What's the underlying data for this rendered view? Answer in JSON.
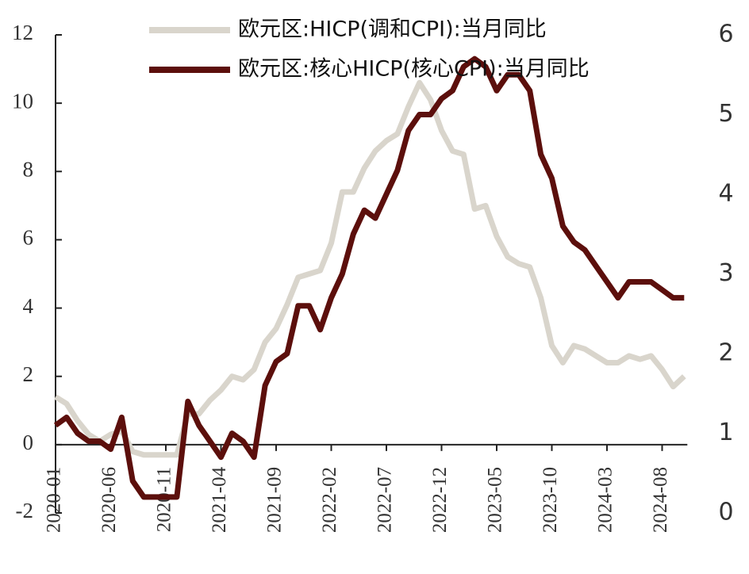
{
  "chart_data": {
    "type": "line",
    "categories": [
      "2020-01",
      null,
      null,
      null,
      null,
      "2020-06",
      null,
      null,
      null,
      null,
      "2020-11",
      null,
      null,
      null,
      null,
      "2021-04",
      null,
      null,
      null,
      null,
      "2021-09",
      null,
      null,
      null,
      null,
      "2022-02",
      null,
      null,
      null,
      null,
      "2022-07",
      null,
      null,
      null,
      null,
      "2022-12",
      null,
      null,
      null,
      null,
      "2023-05",
      null,
      null,
      null,
      null,
      "2023-10",
      null,
      null,
      null,
      null,
      "2024-03",
      null,
      null,
      null,
      null,
      "2024-08",
      null,
      null
    ],
    "series": [
      {
        "name": "欧元区:HICP(调和CPI):当月同比",
        "color": "#d9d5cc",
        "axis": "y",
        "values": [
          1.4,
          1.2,
          0.7,
          0.3,
          0.1,
          0.3,
          0.4,
          -0.2,
          -0.3,
          -0.3,
          -0.3,
          -0.3,
          0.9,
          0.9,
          1.3,
          1.6,
          2.0,
          1.9,
          2.2,
          3.0,
          3.4,
          4.1,
          4.9,
          5.0,
          5.1,
          5.9,
          7.4,
          7.4,
          8.1,
          8.6,
          8.9,
          9.1,
          9.9,
          10.6,
          10.1,
          9.2,
          8.6,
          8.5,
          6.9,
          7.0,
          6.1,
          5.5,
          5.3,
          5.2,
          4.3,
          2.9,
          2.4,
          2.9,
          2.8,
          2.6,
          2.4,
          2.4,
          2.6,
          2.5,
          2.6,
          2.2,
          1.7,
          2.0
        ]
      },
      {
        "name": "欧元区:核心HICP(核心CPI):当月同比",
        "color": "#5c0f0c",
        "axis": "y2",
        "values": [
          1.1,
          1.2,
          1.0,
          0.9,
          0.9,
          0.8,
          1.2,
          0.4,
          0.2,
          0.2,
          0.2,
          0.2,
          1.4,
          1.1,
          0.9,
          0.7,
          1.0,
          0.9,
          0.7,
          1.6,
          1.9,
          2.0,
          2.6,
          2.6,
          2.3,
          2.7,
          3.0,
          3.5,
          3.8,
          3.7,
          4.0,
          4.3,
          4.8,
          5.0,
          5.0,
          5.2,
          5.3,
          5.6,
          5.7,
          5.6,
          5.3,
          5.5,
          5.5,
          5.3,
          4.5,
          4.2,
          3.6,
          3.4,
          3.3,
          3.1,
          2.9,
          2.7,
          2.9,
          2.9,
          2.9,
          2.8,
          2.7,
          2.7
        ]
      }
    ],
    "ylim": [
      -2,
      12
    ],
    "yticks": [
      -2,
      0,
      2,
      4,
      6,
      8,
      10,
      12
    ],
    "y2lim": [
      0,
      6
    ],
    "y2ticks": [
      0,
      1,
      2,
      3,
      4,
      5,
      6
    ],
    "legend": "upper right",
    "grid": false
  }
}
